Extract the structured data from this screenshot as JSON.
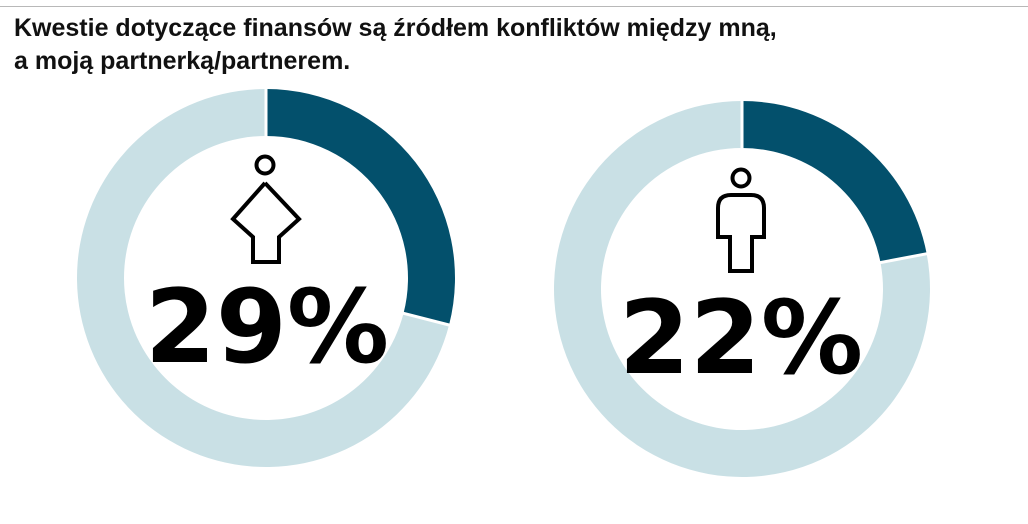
{
  "title": {
    "line1": "Kwestie dotyczące finansów są źródłem konfliktów między mną,",
    "line2": "a moją partnerką/partnerem."
  },
  "colors": {
    "highlight": "#03506c",
    "remainder": "#c9e0e5",
    "icon": "#000000"
  },
  "chart_data": [
    {
      "type": "pie",
      "variant": "donut",
      "icon": "woman-icon",
      "value_label": "29%",
      "values": [
        29,
        71
      ],
      "colors": [
        "#03506c",
        "#c9e0e5"
      ]
    },
    {
      "type": "pie",
      "variant": "donut",
      "icon": "man-icon",
      "value_label": "22%",
      "values": [
        22,
        78
      ],
      "colors": [
        "#03506c",
        "#c9e0e5"
      ]
    }
  ]
}
